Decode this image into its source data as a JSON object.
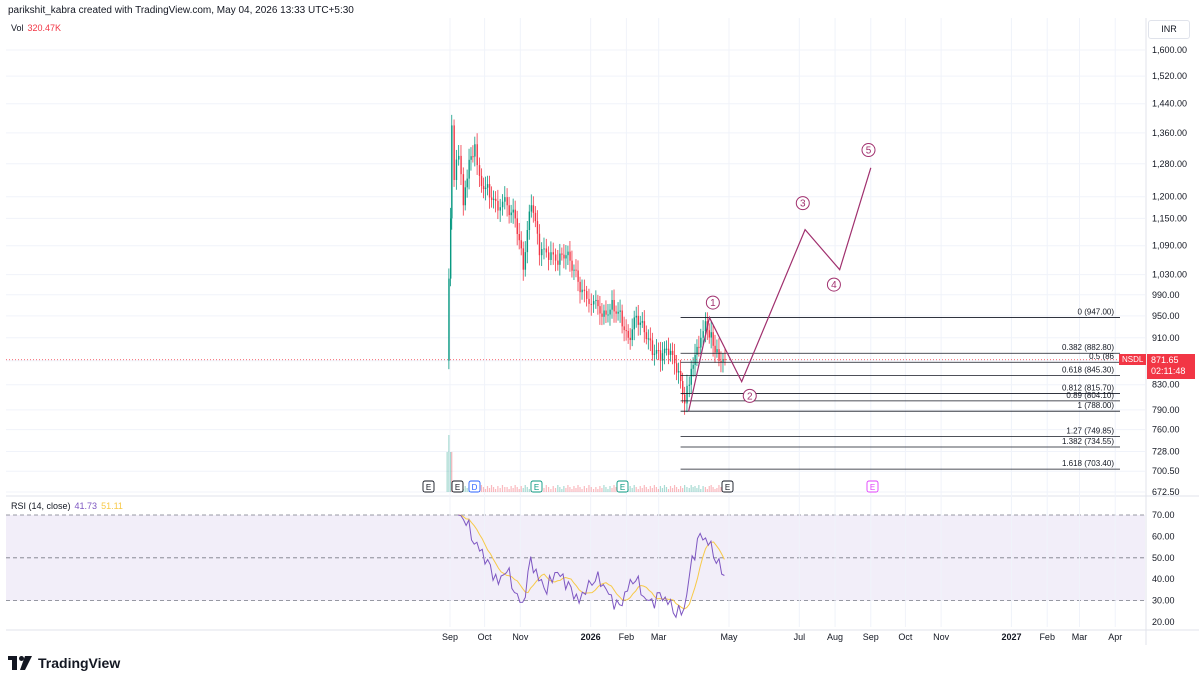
{
  "header": {
    "attribution": "parikshit_kabra created with TradingView.com, May 04, 2026 13:33 UTC+5:30"
  },
  "volume": {
    "label": "Vol",
    "value": "320.47K"
  },
  "currency": "INR",
  "rsi_panel": {
    "label": "RSI (14, close)",
    "rsi_value": "41.73",
    "ma_value": "51.11"
  },
  "symbol_tag": {
    "symbol": "NSDL",
    "price": "871.65",
    "countdown": "02:11:48"
  },
  "footer": {
    "brand": "TradingView"
  },
  "colors": {
    "up": "#089981",
    "down": "#f23645",
    "rsi": "#7e57c2",
    "rsi_ma": "#f7c948",
    "elliott": "#a0306e",
    "fib_line": "#131722"
  },
  "events": [
    "E",
    "E",
    "D",
    "E",
    "E",
    "E",
    "E"
  ],
  "elliott_waves": [
    "1",
    "2",
    "3",
    "4",
    "5"
  ],
  "chart_data": {
    "type": "candlestick",
    "x_ticks": [
      "Sep",
      "Oct",
      "Nov",
      "2026",
      "Feb",
      "Mar",
      "May",
      "Jul",
      "Aug",
      "Sep",
      "Oct",
      "Nov",
      "2027",
      "Feb",
      "Mar",
      "Apr"
    ],
    "price_scale": "log",
    "price_ticks": [
      "1,600.00",
      "1,520.00",
      "1,440.00",
      "1,360.00",
      "1,280.00",
      "1,200.00",
      "1,150.00",
      "1,090.00",
      "1,030.00",
      "990.00",
      "950.00",
      "910.00",
      "870.00",
      "830.00",
      "790.00",
      "760.00",
      "728.00",
      "700.50",
      "672.50"
    ],
    "price_range": [
      672.5,
      1600
    ],
    "rsi_ticks": [
      "70.00",
      "60.00",
      "50.00",
      "40.00",
      "30.00",
      "20.00"
    ],
    "rsi_range": [
      20,
      70
    ],
    "last_price": 871.65,
    "fib_levels": [
      {
        "ratio": "0",
        "price": 947.0
      },
      {
        "ratio": "0.382",
        "price": 882.8
      },
      {
        "ratio": "0.5",
        "price": 867.4
      },
      {
        "ratio": "0.618",
        "price": 845.3
      },
      {
        "ratio": "0.812",
        "price": 815.7
      },
      {
        "ratio": "0.89",
        "price": 804.1
      },
      {
        "ratio": "1",
        "price": 788.0
      },
      {
        "ratio": "1.27",
        "price": 749.85
      },
      {
        "ratio": "1.382",
        "price": 734.55
      },
      {
        "ratio": "1.618",
        "price": 703.4
      }
    ],
    "fib_labels": [
      "0 (947.00)",
      "0.382 (882.80)",
      "0.5 (86",
      "0.618 (845.30)",
      "0.812 (815.70)",
      "0.89 (804.10)",
      "1 (788.00)",
      "1.27 (749.85)",
      "1.382 (734.55)",
      "1.618 (703.40)"
    ],
    "price_path": [
      {
        "date": "2025-08-29",
        "close": 870
      },
      {
        "date": "2025-09-01",
        "close": 1150
      },
      {
        "date": "2025-09-02",
        "close": 1380
      },
      {
        "date": "2025-09-04",
        "close": 1240
      },
      {
        "date": "2025-09-08",
        "close": 1300
      },
      {
        "date": "2025-09-12",
        "close": 1180
      },
      {
        "date": "2025-09-17",
        "close": 1290
      },
      {
        "date": "2025-09-22",
        "close": 1330
      },
      {
        "date": "2025-09-26",
        "close": 1250
      },
      {
        "date": "2025-10-03",
        "close": 1230
      },
      {
        "date": "2025-10-10",
        "close": 1190
      },
      {
        "date": "2025-10-20",
        "close": 1180
      },
      {
        "date": "2025-10-27",
        "close": 1150
      },
      {
        "date": "2025-11-03",
        "close": 1040
      },
      {
        "date": "2025-11-10",
        "close": 1180
      },
      {
        "date": "2025-11-17",
        "close": 1070
      },
      {
        "date": "2025-11-25",
        "close": 1060
      },
      {
        "date": "2025-12-03",
        "close": 1050
      },
      {
        "date": "2025-12-10",
        "close": 1070
      },
      {
        "date": "2025-12-17",
        "close": 1040
      },
      {
        "date": "2025-12-24",
        "close": 1000
      },
      {
        "date": "2026-01-05",
        "close": 980
      },
      {
        "date": "2026-01-12",
        "close": 960
      },
      {
        "date": "2026-01-19",
        "close": 980
      },
      {
        "date": "2026-01-26",
        "close": 960
      },
      {
        "date": "2026-02-02",
        "close": 910
      },
      {
        "date": "2026-02-09",
        "close": 950
      },
      {
        "date": "2026-02-16",
        "close": 920
      },
      {
        "date": "2026-02-23",
        "close": 880
      },
      {
        "date": "2026-03-02",
        "close": 870
      },
      {
        "date": "2026-03-09",
        "close": 880
      },
      {
        "date": "2026-03-16",
        "close": 850
      },
      {
        "date": "2026-03-23",
        "close": 800
      },
      {
        "date": "2026-03-27",
        "close": 830
      },
      {
        "date": "2026-04-01",
        "close": 880
      },
      {
        "date": "2026-04-06",
        "close": 910
      },
      {
        "date": "2026-04-10",
        "close": 940
      },
      {
        "date": "2026-04-15",
        "close": 920
      },
      {
        "date": "2026-04-20",
        "close": 890
      },
      {
        "date": "2026-04-27",
        "close": 871.65
      }
    ],
    "rsi_path": [
      {
        "date": "2025-09-08",
        "rsi": 70
      },
      {
        "date": "2025-09-15",
        "rsi": 68
      },
      {
        "date": "2025-09-22",
        "rsi": 58
      },
      {
        "date": "2025-09-29",
        "rsi": 52
      },
      {
        "date": "2025-10-06",
        "rsi": 44
      },
      {
        "date": "2025-10-13",
        "rsi": 38
      },
      {
        "date": "2025-10-20",
        "rsi": 46
      },
      {
        "date": "2025-10-27",
        "rsi": 35
      },
      {
        "date": "2025-11-03",
        "rsi": 27
      },
      {
        "date": "2025-11-10",
        "rsi": 48
      },
      {
        "date": "2025-11-17",
        "rsi": 40
      },
      {
        "date": "2025-11-24",
        "rsi": 36
      },
      {
        "date": "2025-12-01",
        "rsi": 44
      },
      {
        "date": "2025-12-08",
        "rsi": 40
      },
      {
        "date": "2025-12-15",
        "rsi": 34
      },
      {
        "date": "2025-12-22",
        "rsi": 30
      },
      {
        "date": "2026-01-05",
        "rsi": 42
      },
      {
        "date": "2026-01-12",
        "rsi": 38
      },
      {
        "date": "2026-01-19",
        "rsi": 30
      },
      {
        "date": "2026-01-26",
        "rsi": 26
      },
      {
        "date": "2026-02-02",
        "rsi": 36
      },
      {
        "date": "2026-02-09",
        "rsi": 42
      },
      {
        "date": "2026-02-16",
        "rsi": 32
      },
      {
        "date": "2026-02-23",
        "rsi": 28
      },
      {
        "date": "2026-03-02",
        "rsi": 32
      },
      {
        "date": "2026-03-09",
        "rsi": 30
      },
      {
        "date": "2026-03-16",
        "rsi": 25
      },
      {
        "date": "2026-03-23",
        "rsi": 26
      },
      {
        "date": "2026-03-30",
        "rsi": 48
      },
      {
        "date": "2026-04-06",
        "rsi": 60
      },
      {
        "date": "2026-04-13",
        "rsi": 58
      },
      {
        "date": "2026-04-20",
        "rsi": 50
      },
      {
        "date": "2026-04-27",
        "rsi": 41.73
      }
    ]
  }
}
